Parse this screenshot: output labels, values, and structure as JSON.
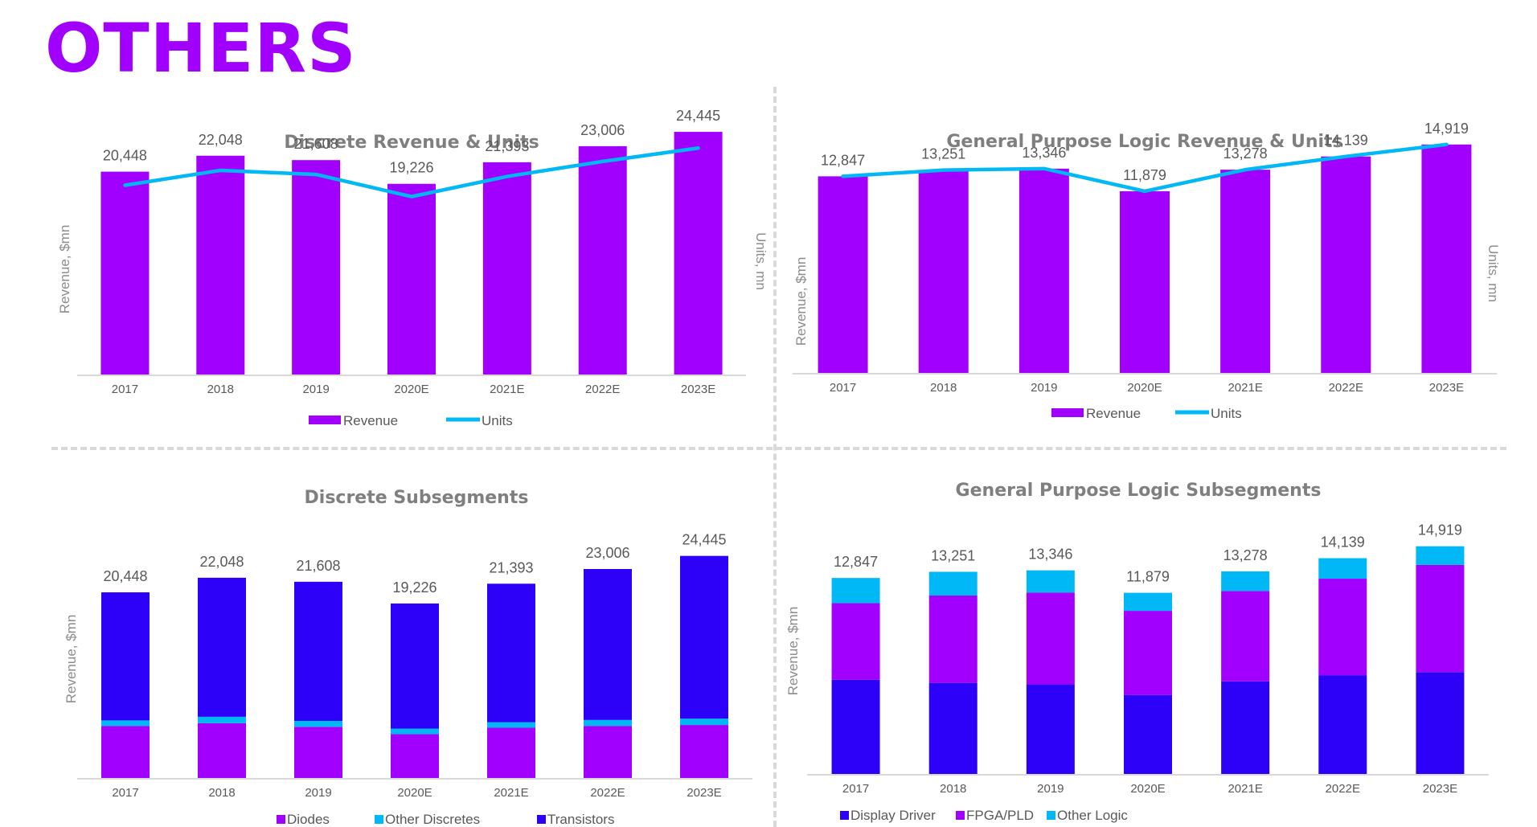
{
  "page": {
    "title": "OTHERS"
  },
  "colors": {
    "purple": "#A100FF",
    "blue": "#2D00F7",
    "cyan": "#00B8F5",
    "axis": "#d9d9d9",
    "text": "#595959"
  },
  "chart_data": [
    {
      "id": "discrete-rev-units",
      "type": "bar",
      "title": "Discrete Revenue & Units",
      "ylabel": "Revenue, $mn",
      "y2label": "Units, mn",
      "categories": [
        "2017",
        "2018",
        "2019",
        "2020E",
        "2021E",
        "2022E",
        "2023E"
      ],
      "series": [
        {
          "name": "Revenue",
          "kind": "bar",
          "color": "#A100FF",
          "values": [
            20448,
            22048,
            21608,
            19226,
            21393,
            23006,
            24445
          ]
        },
        {
          "name": "Units",
          "kind": "line",
          "color": "#00B8F5",
          "values": [
            20448,
            22048,
            21608,
            19226,
            21393,
            23006,
            24445
          ]
        }
      ],
      "data_labels": [
        "20,448",
        "22,048",
        "21,608",
        "19,226",
        "21,393",
        "23,006",
        "24,445"
      ],
      "ylim": [
        0,
        28000
      ],
      "y2lim": [
        0,
        30000
      ],
      "legend_position": "bottom",
      "grid": false
    },
    {
      "id": "gpl-rev-units",
      "type": "bar",
      "title": "General Purpose Logic Revenue & Units",
      "ylabel": "Revenue, $mn",
      "y2label": "Units, mn",
      "categories": [
        "2017",
        "2018",
        "2019",
        "2020E",
        "2021E",
        "2022E",
        "2023E"
      ],
      "series": [
        {
          "name": "Revenue",
          "kind": "bar",
          "color": "#A100FF",
          "values": [
            12847,
            13251,
            13346,
            11879,
            13278,
            14139,
            14919
          ]
        },
        {
          "name": "Units",
          "kind": "line",
          "color": "#00B8F5",
          "values": [
            12847,
            13251,
            13346,
            11879,
            13278,
            14139,
            14919
          ]
        }
      ],
      "data_labels": [
        "12,847",
        "13,251",
        "13,346",
        "11,879",
        "13,278",
        "14,139",
        "14,919"
      ],
      "ylim": [
        0,
        17000
      ],
      "y2lim": [
        0,
        17000
      ],
      "legend_position": "bottom",
      "grid": false
    },
    {
      "id": "discrete-subsegments",
      "type": "bar",
      "stacked": true,
      "title": "Discrete Subsegments",
      "ylabel": "Revenue, $mn",
      "categories": [
        "2017",
        "2018",
        "2019",
        "2020E",
        "2021E",
        "2022E",
        "2023E"
      ],
      "series": [
        {
          "name": "Diodes",
          "color": "#A100FF",
          "values": [
            5800,
            6100,
            5700,
            4900,
            5600,
            5800,
            5900
          ]
        },
        {
          "name": "Other Discretes",
          "color": "#00B8F5",
          "values": [
            600,
            700,
            650,
            600,
            600,
            650,
            700
          ]
        },
        {
          "name": "Transistors",
          "color": "#2D00F7",
          "values": [
            14048,
            15248,
            15258,
            13726,
            15193,
            16556,
            17845
          ]
        }
      ],
      "totals": [
        "20,448",
        "22,048",
        "21,608",
        "19,226",
        "21,393",
        "23,006",
        "24,445"
      ],
      "ylim": [
        0,
        29000
      ],
      "legend_position": "bottom",
      "grid": false
    },
    {
      "id": "gpl-subsegments",
      "type": "bar",
      "stacked": true,
      "title": "General Purpose Logic Subsegments",
      "ylabel": "Revenue, $mn",
      "categories": [
        "2017",
        "2018",
        "2019",
        "2020E",
        "2021E",
        "2022E",
        "2023E"
      ],
      "series": [
        {
          "name": "Display Driver",
          "color": "#2D00F7",
          "values": [
            6200,
            6000,
            5900,
            5200,
            6100,
            6500,
            6700
          ]
        },
        {
          "name": "FPGA/PLD",
          "color": "#A100FF",
          "values": [
            5000,
            5700,
            6000,
            5500,
            5900,
            6300,
            7000
          ]
        },
        {
          "name": "Other Logic",
          "color": "#00B8F5",
          "values": [
            1647,
            1551,
            1446,
            1179,
            1278,
            1339,
            1219
          ]
        }
      ],
      "totals": [
        "12,847",
        "13,251",
        "13,346",
        "11,879",
        "13,278",
        "14,139",
        "14,919"
      ],
      "ylim": [
        0,
        17000
      ],
      "legend_position": "bottom",
      "grid": false
    }
  ]
}
